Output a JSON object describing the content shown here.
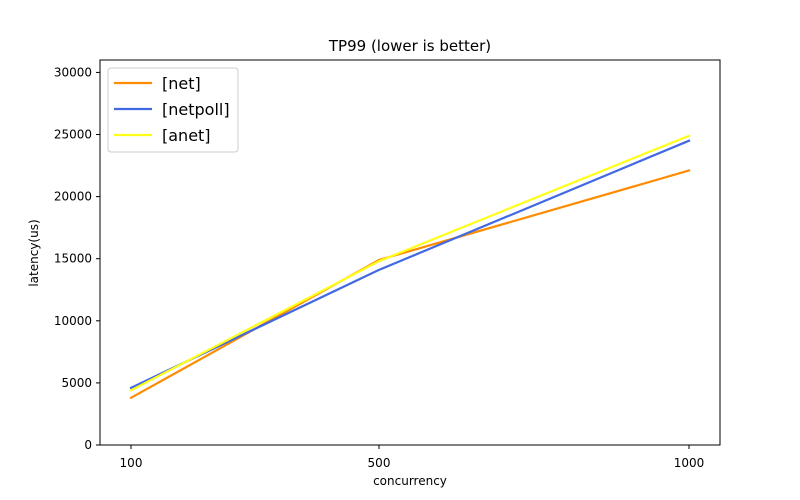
{
  "chart_data": {
    "type": "line",
    "title": "TP99 (lower is better)",
    "xlabel": "concurrency",
    "ylabel": "latency(us)",
    "x": [
      100,
      500,
      1000
    ],
    "x_tick_labels": [
      "100",
      "500",
      "1000"
    ],
    "xlim": [
      50,
      1050
    ],
    "ylim": [
      0,
      31000
    ],
    "y_ticks": [
      0,
      5000,
      10000,
      15000,
      20000,
      25000,
      30000
    ],
    "y_tick_labels": [
      "0",
      "5000",
      "10000",
      "15000",
      "20000",
      "25000",
      "30000"
    ],
    "grid": false,
    "legend_position": "top-left",
    "series": [
      {
        "name": "[net]",
        "color": "#ff8c00",
        "values": [
          3800,
          14900,
          22100
        ]
      },
      {
        "name": "[netpoll]",
        "color": "#4169e1",
        "values": [
          4600,
          14100,
          24500
        ]
      },
      {
        "name": "[anet]",
        "color": "#ffff1a",
        "values": [
          4400,
          14800,
          24900
        ]
      }
    ]
  }
}
